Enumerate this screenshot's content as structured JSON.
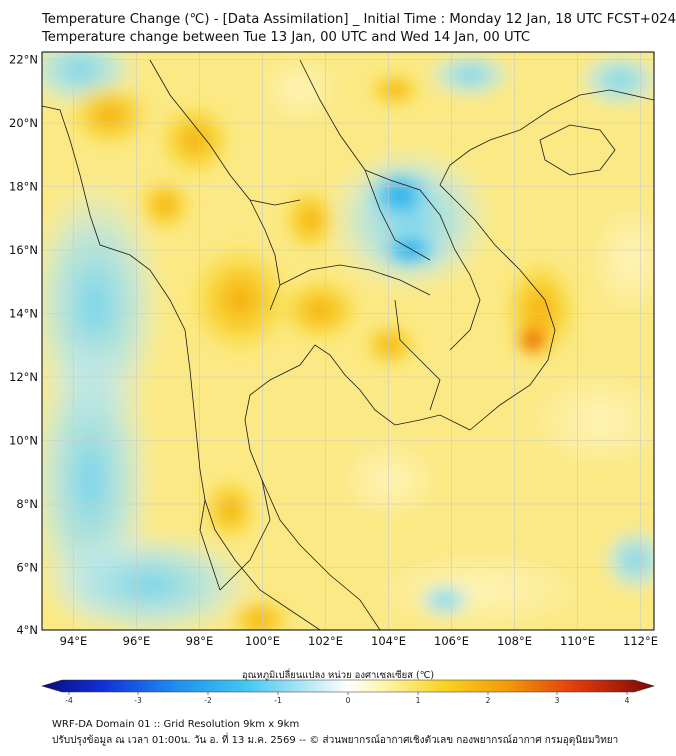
{
  "header": {
    "title_line1": "Temperature Change (℃) - [Data Assimilation] _ Initial Time : Monday 12 Jan, 18 UTC FCST+024",
    "title_line2": "Temperature change between Tue 13 Jan, 00 UTC and Wed 14 Jan, 00 UTC"
  },
  "map": {
    "lat_ticks": [
      "22°N",
      "20°N",
      "18°N",
      "16°N",
      "14°N",
      "12°N",
      "10°N",
      "8°N",
      "6°N",
      "4°N"
    ],
    "lon_ticks": [
      "94°E",
      "96°E",
      "98°E",
      "100°E",
      "102°E",
      "104°E",
      "106°E",
      "108°E",
      "110°E",
      "112°E"
    ],
    "lat_range": [
      4,
      22.2
    ],
    "lon_range": [
      93,
      112.3
    ]
  },
  "colorbar": {
    "label": "อุณหภูมิเปลี่ยนแปลง หน่วย องศาเซลเซียส (℃)",
    "ticks": [
      "-4",
      "-3",
      "-2",
      "-1",
      "0",
      "1",
      "2",
      "3",
      "4"
    ],
    "range": [
      -4,
      4
    ]
  },
  "footer": {
    "line1": "WRF-DA Domain 01 :: Grid Resolution 9km x 9km",
    "line2": "ปรับปรุงข้อมูล ณ เวลา 01:00น. วัน อ. ที่ 13 ม.ค. 2569 -- © ส่วนพยากรณ์อากาศเชิงตัวเลข กองพยากรณ์อากาศ กรมอุตุนิยมวิทยา"
  }
}
